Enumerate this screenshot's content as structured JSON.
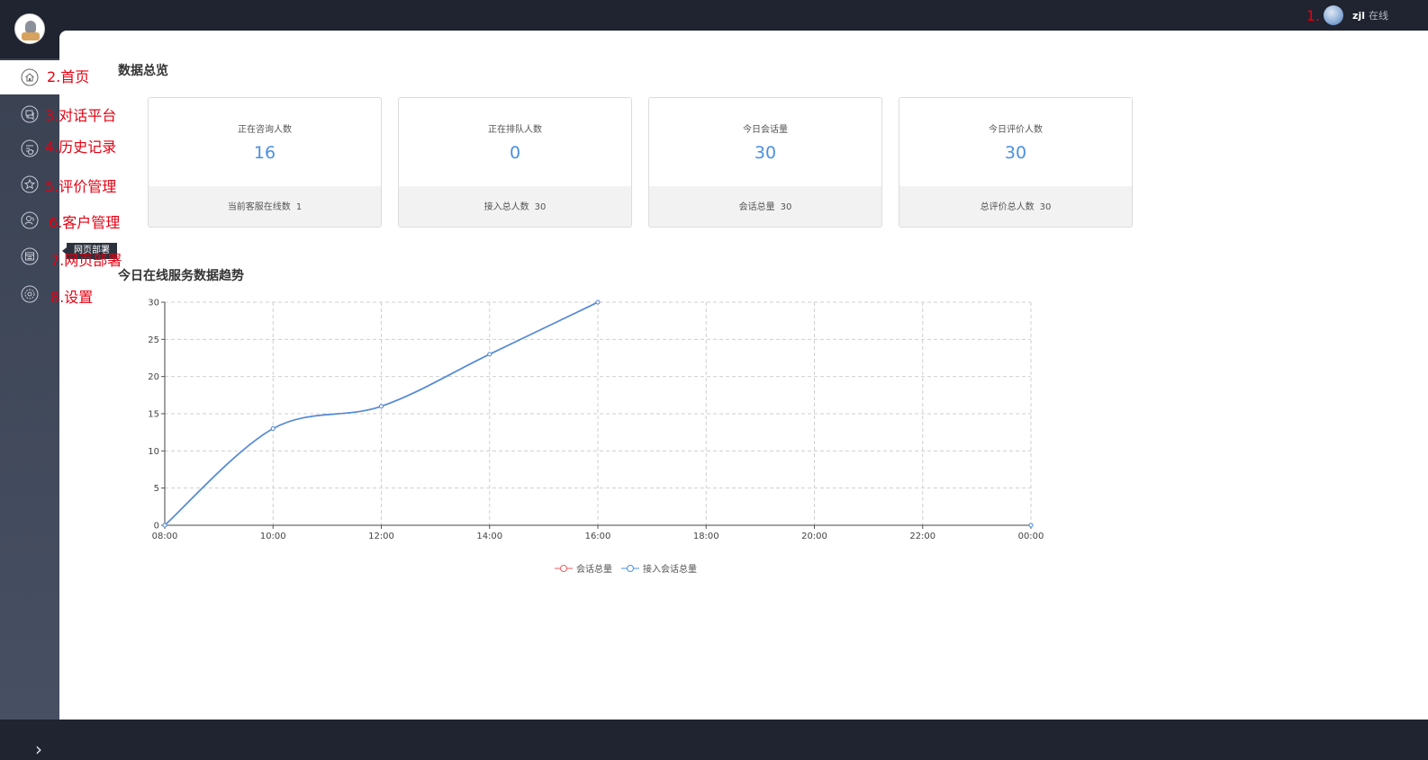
{
  "header": {
    "annotation": "1.",
    "user_name": "zjl",
    "status": "在线"
  },
  "sidebar": {
    "items": [
      {
        "label": "2.首页",
        "icon": "home-icon"
      },
      {
        "label": "3.对话平台",
        "icon": "chat-icon"
      },
      {
        "label": "4.历史记录",
        "icon": "history-icon"
      },
      {
        "label": "5.评价管理",
        "icon": "star-icon"
      },
      {
        "label": "6.客户管理",
        "icon": "customer-icon"
      },
      {
        "label": "7.网页部署",
        "icon": "webpage-icon"
      },
      {
        "label": "8.设置",
        "icon": "settings-icon"
      }
    ],
    "tooltip": "网页部署",
    "expand_icon": "chevron-right-icon"
  },
  "overview": {
    "title": "数据总览",
    "cards": [
      {
        "label": "正在咨询人数",
        "value": "16",
        "foot_label": "当前客服在线数",
        "foot_value": "1"
      },
      {
        "label": "正在排队人数",
        "value": "0",
        "foot_label": "接入总人数",
        "foot_value": "30"
      },
      {
        "label": "今日会话量",
        "value": "30",
        "foot_label": "会话总量",
        "foot_value": "30"
      },
      {
        "label": "今日评价人数",
        "value": "30",
        "foot_label": "总评价总人数",
        "foot_value": "30"
      }
    ]
  },
  "trend": {
    "title": "今日在线服务数据趋势"
  },
  "chart_data": {
    "type": "line",
    "categories": [
      "08:00",
      "10:00",
      "12:00",
      "14:00",
      "16:00",
      "18:00",
      "20:00",
      "22:00",
      "00:00"
    ],
    "ylim": [
      0,
      30
    ],
    "yticks": [
      0,
      5,
      10,
      15,
      20,
      25,
      30
    ],
    "grid": true,
    "legend_position": "bottom",
    "series": [
      {
        "name": "会话总量",
        "color": "#ef5b5b",
        "values": [
          0,
          13,
          16,
          23,
          30,
          null,
          null,
          null,
          0
        ]
      },
      {
        "name": "接入会话总量",
        "color": "#4a90e2",
        "values": [
          0,
          13,
          16,
          23,
          30,
          null,
          null,
          null,
          0
        ]
      }
    ]
  },
  "colors": {
    "accent": "#4a90e2",
    "annotation": "#e60012",
    "sidebar": "#3a4252"
  }
}
